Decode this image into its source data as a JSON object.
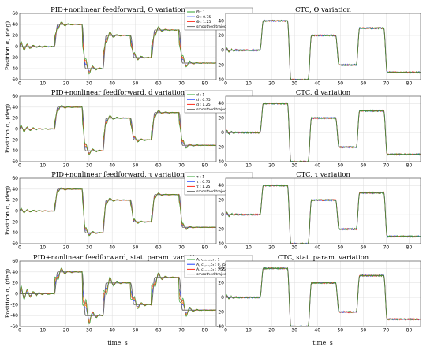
{
  "figure": {
    "ylabel": "Position α, (deg)",
    "xlabel": "time, s"
  },
  "colors": {
    "grid": "#dcdcdc",
    "axis": "#555555",
    "smoothed": "#6e6e6e",
    "s1": "#2ca02c",
    "s2": "#1f3fff",
    "s3": "#ff2a1a",
    "orange": "#f28e1c"
  },
  "reference": {
    "times": [
      0,
      15,
      27,
      36,
      48,
      57,
      69
    ],
    "levels": [
      0,
      40,
      -40,
      20,
      -20,
      30,
      -30
    ]
  },
  "chart_data": [
    {
      "type": "line",
      "title": "PID+nonlinear feedforward, Θ variation",
      "xlim": [
        0,
        85
      ],
      "ylim": [
        -60,
        60
      ],
      "yticks": [
        -60,
        -40,
        -20,
        0,
        20,
        40,
        60
      ],
      "xticks": [
        0,
        10,
        20,
        30,
        40,
        50,
        60,
        70,
        80
      ],
      "grid": true,
      "legend_position": "top-right",
      "series": [
        {
          "name": "Θ : 1"
        },
        {
          "name": "Θ : 0.75"
        },
        {
          "name": "Θ : 1.25"
        },
        {
          "name": "smoothed trajectory"
        }
      ],
      "x": [
        0,
        15,
        27,
        36,
        48,
        57,
        69,
        85
      ],
      "reference": [
        0,
        40,
        -40,
        20,
        -20,
        30,
        -30,
        -30
      ],
      "overshoot_deg": [
        [
          10,
          8,
          12
        ],
        [
          12,
          10,
          15
        ]
      ]
    },
    {
      "type": "line",
      "title": "CTC, Θ variation",
      "xlim": [
        0,
        85
      ],
      "ylim": [
        -40,
        50
      ],
      "yticks": [
        -40,
        -20,
        0,
        20,
        40
      ],
      "xticks": [
        0,
        10,
        20,
        30,
        40,
        50,
        60,
        70,
        80
      ],
      "grid": true,
      "series": [],
      "x": [
        0,
        15,
        27,
        36,
        48,
        57,
        69,
        85
      ],
      "reference": [
        0,
        40,
        -40,
        20,
        -20,
        30,
        -30,
        -30
      ]
    },
    {
      "type": "line",
      "title": "PID+nonlinear feedforward, d variation",
      "xlim": [
        0,
        85
      ],
      "ylim": [
        -60,
        60
      ],
      "yticks": [
        -60,
        -40,
        -20,
        0,
        20,
        40,
        60
      ],
      "xticks": [
        0,
        10,
        20,
        30,
        40,
        50,
        60,
        70,
        80
      ],
      "grid": true,
      "legend_position": "top-right",
      "series": [
        {
          "name": "d : 1"
        },
        {
          "name": "d : 0.75"
        },
        {
          "name": "d : 1.25"
        },
        {
          "name": "smoothed trajectory"
        }
      ],
      "x": [
        0,
        15,
        27,
        36,
        48,
        57,
        69,
        85
      ],
      "reference": [
        0,
        40,
        -40,
        20,
        -20,
        30,
        -30,
        -30
      ]
    },
    {
      "type": "line",
      "title": "CTC, d variation",
      "xlim": [
        0,
        85
      ],
      "ylim": [
        -40,
        50
      ],
      "yticks": [
        -40,
        -20,
        0,
        20,
        40
      ],
      "xticks": [
        0,
        10,
        20,
        30,
        40,
        50,
        60,
        70,
        80
      ],
      "grid": true,
      "series": [],
      "x": [
        0,
        15,
        27,
        36,
        48,
        57,
        69,
        85
      ],
      "reference": [
        0,
        40,
        -40,
        20,
        -20,
        30,
        -30,
        -30
      ]
    },
    {
      "type": "line",
      "title": "PID+nonlinear feedforward, τ variation",
      "xlim": [
        0,
        85
      ],
      "ylim": [
        -60,
        60
      ],
      "yticks": [
        -60,
        -40,
        -20,
        0,
        20,
        40,
        60
      ],
      "xticks": [
        0,
        10,
        20,
        30,
        40,
        50,
        60,
        70,
        80
      ],
      "grid": true,
      "legend_position": "top-right",
      "series": [
        {
          "name": "τ : 1"
        },
        {
          "name": "τ : 0.75"
        },
        {
          "name": "τ : 1.25"
        },
        {
          "name": "smoothed trajectory"
        }
      ],
      "x": [
        0,
        15,
        27,
        36,
        48,
        57,
        69,
        85
      ],
      "reference": [
        0,
        40,
        -40,
        20,
        -20,
        30,
        -30,
        -30
      ]
    },
    {
      "type": "line",
      "title": "CTC, τ variation",
      "xlim": [
        0,
        85
      ],
      "ylim": [
        -40,
        50
      ],
      "yticks": [
        -40,
        -20,
        0,
        20,
        40
      ],
      "xticks": [
        0,
        10,
        20,
        30,
        40,
        50,
        60,
        70,
        80
      ],
      "grid": true,
      "series": [],
      "x": [
        0,
        15,
        27,
        36,
        48,
        57,
        69,
        85
      ],
      "reference": [
        0,
        40,
        -40,
        20,
        -20,
        30,
        -30,
        -30
      ]
    },
    {
      "type": "line",
      "title": "PID+nonlinear feedforward, stat. param. variation",
      "xlim": [
        0,
        85
      ],
      "ylim": [
        -60,
        60
      ],
      "yticks": [
        -60,
        -40,
        -20,
        0,
        20,
        40,
        60
      ],
      "xticks": [
        0,
        10,
        20,
        30,
        40,
        50,
        60,
        70,
        80
      ],
      "grid": true,
      "legend_position": "top-right",
      "series": [
        {
          "name": "A, c₁,...,c₃ : 1"
        },
        {
          "name": "A, c₁,...,c₃ : 0.75"
        },
        {
          "name": "A, c₁,...,c₃ : 1.25"
        },
        {
          "name": "smoothed trajectory"
        }
      ],
      "x": [
        0,
        15,
        27,
        36,
        48,
        57,
        69,
        85
      ],
      "reference": [
        0,
        40,
        -40,
        20,
        -20,
        30,
        -30,
        -30
      ]
    },
    {
      "type": "line",
      "title": "CTC, stat. param. variation",
      "xlim": [
        0,
        85
      ],
      "ylim": [
        -40,
        50
      ],
      "yticks": [
        -40,
        -20,
        0,
        20,
        40
      ],
      "xticks": [
        0,
        10,
        20,
        30,
        40,
        50,
        60,
        70,
        80
      ],
      "grid": true,
      "series": [],
      "x": [
        0,
        15,
        27,
        36,
        48,
        57,
        69,
        85
      ],
      "reference": [
        0,
        40,
        -40,
        20,
        -20,
        30,
        -30,
        -30
      ]
    }
  ]
}
